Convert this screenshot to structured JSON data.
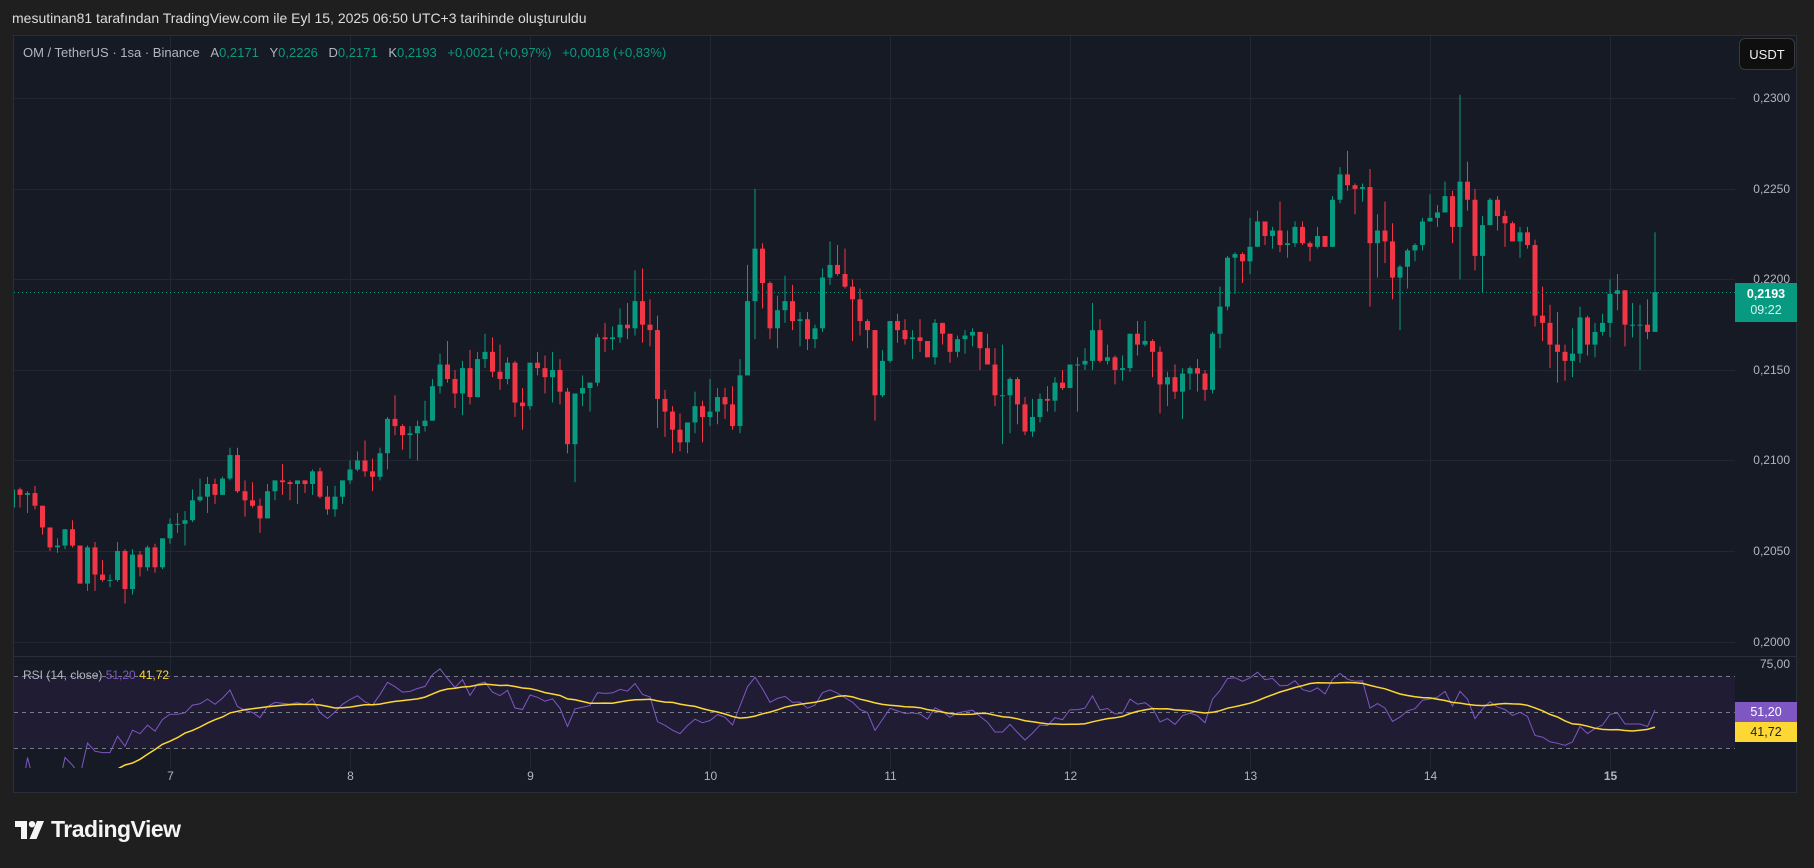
{
  "title": "mesutinan81 tarafından TradingView.com ile Eyl 15, 2025 06:50 UTC+3 tarihinde oluşturuldu",
  "legend": {
    "symbol": "OM / TetherUS · 1sa · Binance",
    "open_label": "A",
    "open": "0,2171",
    "high_label": "Y",
    "high": "0,2226",
    "low_label": "D",
    "low": "0,2171",
    "close_label": "K",
    "close": "0,2193",
    "change": "+0,0021 (+0,97%)",
    "change2": "+0,0018 (+0,83%)"
  },
  "currency_button": "USDT",
  "price_tag": {
    "price": "0,2193",
    "countdown": "09:22"
  },
  "rsi": {
    "label": "RSI (14, close)",
    "value": "51,20",
    "ma_value": "41,72",
    "axis_label": "75,00",
    "upper": 70,
    "middle": 50,
    "lower": 30
  },
  "logo": {
    "text": "TradingView"
  },
  "colors": {
    "up": "#089981",
    "down": "#f23645",
    "rsi": "#7e57c2",
    "rsi_ma": "#fdd835",
    "background": "#161a25"
  },
  "chart_data": {
    "type": "candlestick",
    "interval": "1sa",
    "ylim": [
      0.1992,
      0.2335
    ],
    "grid": true,
    "price_ticks": [
      {
        "label": "0,2300",
        "value": 0.23
      },
      {
        "label": "0,2250",
        "value": 0.225
      },
      {
        "label": "0,2200",
        "value": 0.22
      },
      {
        "label": "0,2150",
        "value": 0.215
      },
      {
        "label": "0,2100",
        "value": 0.21
      },
      {
        "label": "0,2050",
        "value": 0.205
      },
      {
        "label": "0,2000",
        "value": 0.2
      }
    ],
    "day_ticks": [
      "7",
      "8",
      "9",
      "10",
      "11",
      "12",
      "13",
      "14",
      "15"
    ],
    "last_price": 0.2193,
    "ohlc": [
      [
        0.2074,
        0.2089,
        0.2069,
        0.2084
      ],
      [
        0.2084,
        0.2085,
        0.2074,
        0.2081
      ],
      [
        0.2081,
        0.2083,
        0.2071,
        0.2082
      ],
      [
        0.2082,
        0.2086,
        0.2073,
        0.2075
      ],
      [
        0.2075,
        0.2075,
        0.2059,
        0.2063
      ],
      [
        0.2063,
        0.2063,
        0.205,
        0.2052
      ],
      [
        0.2052,
        0.2057,
        0.2049,
        0.2053
      ],
      [
        0.2053,
        0.2062,
        0.2051,
        0.2062
      ],
      [
        0.2062,
        0.2067,
        0.2052,
        0.2053
      ],
      [
        0.2053,
        0.2053,
        0.2032,
        0.2032
      ],
      [
        0.2032,
        0.2053,
        0.2028,
        0.2052
      ],
      [
        0.2052,
        0.2055,
        0.2028,
        0.2037
      ],
      [
        0.2037,
        0.2045,
        0.2033,
        0.2034
      ],
      [
        0.2034,
        0.2037,
        0.203,
        0.2034
      ],
      [
        0.2034,
        0.2055,
        0.2033,
        0.205
      ],
      [
        0.205,
        0.2051,
        0.2021,
        0.2029
      ],
      [
        0.2029,
        0.2051,
        0.2026,
        0.2048
      ],
      [
        0.2048,
        0.205,
        0.2036,
        0.2041
      ],
      [
        0.2041,
        0.2053,
        0.2039,
        0.2052
      ],
      [
        0.2052,
        0.2054,
        0.2038,
        0.2041
      ],
      [
        0.2041,
        0.2057,
        0.204,
        0.2057
      ],
      [
        0.2057,
        0.2068,
        0.2054,
        0.2065
      ],
      [
        0.2065,
        0.2071,
        0.206,
        0.2065
      ],
      [
        0.2065,
        0.2072,
        0.2053,
        0.2067
      ],
      [
        0.2067,
        0.2084,
        0.2066,
        0.2078
      ],
      [
        0.2078,
        0.209,
        0.2077,
        0.208
      ],
      [
        0.208,
        0.2091,
        0.2071,
        0.2087
      ],
      [
        0.2087,
        0.209,
        0.2076,
        0.2081
      ],
      [
        0.2081,
        0.2091,
        0.2081,
        0.209
      ],
      [
        0.209,
        0.2107,
        0.2089,
        0.2103
      ],
      [
        0.2103,
        0.2107,
        0.2082,
        0.2083
      ],
      [
        0.2083,
        0.2089,
        0.2069,
        0.2078
      ],
      [
        0.2078,
        0.2088,
        0.2074,
        0.2075
      ],
      [
        0.2075,
        0.2079,
        0.206,
        0.2068
      ],
      [
        0.2068,
        0.2087,
        0.2068,
        0.2083
      ],
      [
        0.2083,
        0.2089,
        0.2078,
        0.2089
      ],
      [
        0.2089,
        0.2098,
        0.2081,
        0.2088
      ],
      [
        0.2088,
        0.2089,
        0.2078,
        0.2087
      ],
      [
        0.2087,
        0.2089,
        0.2076,
        0.2089
      ],
      [
        0.2089,
        0.2089,
        0.2082,
        0.2087
      ],
      [
        0.2087,
        0.2095,
        0.2081,
        0.2094
      ],
      [
        0.2094,
        0.2096,
        0.2079,
        0.208
      ],
      [
        0.208,
        0.2086,
        0.207,
        0.2073
      ],
      [
        0.2073,
        0.2086,
        0.2069,
        0.208
      ],
      [
        0.208,
        0.2089,
        0.2076,
        0.2089
      ],
      [
        0.2089,
        0.21,
        0.2087,
        0.2095
      ],
      [
        0.2095,
        0.2105,
        0.2094,
        0.21
      ],
      [
        0.21,
        0.2111,
        0.2091,
        0.2094
      ],
      [
        0.2094,
        0.2101,
        0.2083,
        0.2091
      ],
      [
        0.2091,
        0.2107,
        0.2089,
        0.2104
      ],
      [
        0.2104,
        0.2124,
        0.2095,
        0.2123
      ],
      [
        0.2123,
        0.2136,
        0.2114,
        0.2119
      ],
      [
        0.2119,
        0.212,
        0.2106,
        0.2114
      ],
      [
        0.2114,
        0.2119,
        0.2101,
        0.2115
      ],
      [
        0.2115,
        0.2122,
        0.21,
        0.2119
      ],
      [
        0.2119,
        0.2133,
        0.2116,
        0.2122
      ],
      [
        0.2122,
        0.2145,
        0.2122,
        0.2141
      ],
      [
        0.2141,
        0.2159,
        0.2137,
        0.2153
      ],
      [
        0.2153,
        0.2166,
        0.2143,
        0.2145
      ],
      [
        0.2145,
        0.215,
        0.2129,
        0.2137
      ],
      [
        0.2137,
        0.2155,
        0.2125,
        0.2151
      ],
      [
        0.2151,
        0.2161,
        0.2131,
        0.2135
      ],
      [
        0.2135,
        0.216,
        0.2135,
        0.2156
      ],
      [
        0.2156,
        0.217,
        0.2151,
        0.216
      ],
      [
        0.216,
        0.2168,
        0.2146,
        0.2149
      ],
      [
        0.2149,
        0.2164,
        0.2139,
        0.2145
      ],
      [
        0.2145,
        0.2157,
        0.2142,
        0.2154
      ],
      [
        0.2154,
        0.2155,
        0.2124,
        0.2132
      ],
      [
        0.2132,
        0.214,
        0.2117,
        0.213
      ],
      [
        0.213,
        0.2154,
        0.2128,
        0.2154
      ],
      [
        0.2154,
        0.216,
        0.2147,
        0.2151
      ],
      [
        0.2151,
        0.2158,
        0.2137,
        0.2146
      ],
      [
        0.2146,
        0.216,
        0.2132,
        0.215
      ],
      [
        0.215,
        0.2156,
        0.2131,
        0.2138
      ],
      [
        0.2138,
        0.214,
        0.2104,
        0.2109
      ],
      [
        0.2109,
        0.2137,
        0.2088,
        0.2137
      ],
      [
        0.2137,
        0.2147,
        0.213,
        0.214
      ],
      [
        0.214,
        0.2143,
        0.2127,
        0.2143
      ],
      [
        0.2143,
        0.217,
        0.2141,
        0.2168
      ],
      [
        0.2168,
        0.2176,
        0.216,
        0.2167
      ],
      [
        0.2167,
        0.2174,
        0.2161,
        0.2168
      ],
      [
        0.2168,
        0.2184,
        0.2165,
        0.2175
      ],
      [
        0.2175,
        0.2187,
        0.2167,
        0.2173
      ],
      [
        0.2173,
        0.2205,
        0.2169,
        0.2188
      ],
      [
        0.2188,
        0.2206,
        0.2165,
        0.2175
      ],
      [
        0.2175,
        0.2189,
        0.2163,
        0.2172
      ],
      [
        0.2172,
        0.218,
        0.2118,
        0.2134
      ],
      [
        0.2134,
        0.2139,
        0.2113,
        0.2127
      ],
      [
        0.2127,
        0.213,
        0.2104,
        0.2117
      ],
      [
        0.2117,
        0.2126,
        0.2105,
        0.211
      ],
      [
        0.211,
        0.2121,
        0.2104,
        0.2121
      ],
      [
        0.2121,
        0.2138,
        0.2115,
        0.213
      ],
      [
        0.213,
        0.2133,
        0.211,
        0.2124
      ],
      [
        0.2124,
        0.2145,
        0.2119,
        0.2127
      ],
      [
        0.2127,
        0.214,
        0.212,
        0.2135
      ],
      [
        0.2135,
        0.214,
        0.2123,
        0.2131
      ],
      [
        0.2131,
        0.2141,
        0.2117,
        0.2119
      ],
      [
        0.2119,
        0.2156,
        0.2115,
        0.2147
      ],
      [
        0.2147,
        0.2208,
        0.2147,
        0.2188
      ],
      [
        0.2188,
        0.225,
        0.2167,
        0.2217
      ],
      [
        0.2217,
        0.222,
        0.2184,
        0.2198
      ],
      [
        0.2198,
        0.2199,
        0.2167,
        0.2173
      ],
      [
        0.2173,
        0.2191,
        0.2162,
        0.2183
      ],
      [
        0.2183,
        0.2202,
        0.2176,
        0.2188
      ],
      [
        0.2188,
        0.2197,
        0.2172,
        0.2177
      ],
      [
        0.2177,
        0.2182,
        0.2163,
        0.2178
      ],
      [
        0.2178,
        0.2182,
        0.2161,
        0.2167
      ],
      [
        0.2167,
        0.2175,
        0.2162,
        0.2173
      ],
      [
        0.2173,
        0.2206,
        0.2171,
        0.2201
      ],
      [
        0.2201,
        0.2221,
        0.2197,
        0.2208
      ],
      [
        0.2208,
        0.2219,
        0.2202,
        0.2203
      ],
      [
        0.2203,
        0.2217,
        0.2195,
        0.2196
      ],
      [
        0.2196,
        0.22,
        0.2166,
        0.2189
      ],
      [
        0.2189,
        0.2195,
        0.2169,
        0.2177
      ],
      [
        0.2177,
        0.2178,
        0.2162,
        0.2172
      ],
      [
        0.2172,
        0.2172,
        0.2122,
        0.2136
      ],
      [
        0.2136,
        0.2161,
        0.2135,
        0.2155
      ],
      [
        0.2155,
        0.2177,
        0.2154,
        0.2177
      ],
      [
        0.2177,
        0.2181,
        0.2165,
        0.2172
      ],
      [
        0.2172,
        0.2178,
        0.2164,
        0.2167
      ],
      [
        0.2167,
        0.2172,
        0.2156,
        0.2168
      ],
      [
        0.2168,
        0.2178,
        0.216,
        0.2166
      ],
      [
        0.2166,
        0.2166,
        0.2157,
        0.2157
      ],
      [
        0.2157,
        0.2178,
        0.2153,
        0.2176
      ],
      [
        0.2176,
        0.2176,
        0.2164,
        0.217
      ],
      [
        0.217,
        0.217,
        0.2154,
        0.216
      ],
      [
        0.216,
        0.2169,
        0.2157,
        0.2167
      ],
      [
        0.2167,
        0.2172,
        0.2159,
        0.2169
      ],
      [
        0.2169,
        0.2173,
        0.2163,
        0.2171
      ],
      [
        0.2171,
        0.2171,
        0.215,
        0.2162
      ],
      [
        0.2162,
        0.217,
        0.2153,
        0.2153
      ],
      [
        0.2153,
        0.2162,
        0.213,
        0.2136
      ],
      [
        0.2136,
        0.2164,
        0.2109,
        0.2136
      ],
      [
        0.2136,
        0.2146,
        0.2115,
        0.2145
      ],
      [
        0.2145,
        0.2146,
        0.212,
        0.2131
      ],
      [
        0.2131,
        0.2135,
        0.2114,
        0.2116
      ],
      [
        0.2116,
        0.2134,
        0.2113,
        0.2124
      ],
      [
        0.2124,
        0.2137,
        0.2121,
        0.2134
      ],
      [
        0.2134,
        0.2141,
        0.2127,
        0.2133
      ],
      [
        0.2133,
        0.2146,
        0.2127,
        0.2143
      ],
      [
        0.2143,
        0.215,
        0.2139,
        0.214
      ],
      [
        0.214,
        0.2153,
        0.214,
        0.2153
      ],
      [
        0.2153,
        0.2157,
        0.2127,
        0.2153
      ],
      [
        0.2153,
        0.2162,
        0.215,
        0.2155
      ],
      [
        0.2155,
        0.2187,
        0.215,
        0.2172
      ],
      [
        0.2172,
        0.2178,
        0.2154,
        0.2155
      ],
      [
        0.2155,
        0.2164,
        0.2153,
        0.2157
      ],
      [
        0.2157,
        0.2158,
        0.2142,
        0.215
      ],
      [
        0.215,
        0.2158,
        0.2144,
        0.2151
      ],
      [
        0.2151,
        0.217,
        0.2149,
        0.217
      ],
      [
        0.217,
        0.2177,
        0.2158,
        0.2164
      ],
      [
        0.2164,
        0.2177,
        0.2163,
        0.2166
      ],
      [
        0.2166,
        0.2167,
        0.2146,
        0.216
      ],
      [
        0.216,
        0.2163,
        0.2126,
        0.2142
      ],
      [
        0.2142,
        0.2149,
        0.213,
        0.2146
      ],
      [
        0.2146,
        0.2153,
        0.2134,
        0.2138
      ],
      [
        0.2138,
        0.2151,
        0.2123,
        0.2148
      ],
      [
        0.2148,
        0.2152,
        0.2139,
        0.2151
      ],
      [
        0.2151,
        0.2156,
        0.2138,
        0.2148
      ],
      [
        0.2148,
        0.215,
        0.2133,
        0.2139
      ],
      [
        0.2139,
        0.2171,
        0.2137,
        0.217
      ],
      [
        0.217,
        0.2196,
        0.2162,
        0.2185
      ],
      [
        0.2185,
        0.2213,
        0.2183,
        0.2212
      ],
      [
        0.2212,
        0.2215,
        0.2192,
        0.2214
      ],
      [
        0.2214,
        0.2215,
        0.2198,
        0.221
      ],
      [
        0.221,
        0.2234,
        0.2203,
        0.2218
      ],
      [
        0.2218,
        0.2238,
        0.2218,
        0.2232
      ],
      [
        0.2232,
        0.2232,
        0.2219,
        0.2224
      ],
      [
        0.2224,
        0.2229,
        0.2217,
        0.2227
      ],
      [
        0.2227,
        0.2243,
        0.2215,
        0.2219
      ],
      [
        0.2219,
        0.2227,
        0.2212,
        0.222
      ],
      [
        0.222,
        0.2232,
        0.2218,
        0.2229
      ],
      [
        0.2229,
        0.2232,
        0.2219,
        0.222
      ],
      [
        0.222,
        0.2221,
        0.221,
        0.2218
      ],
      [
        0.2218,
        0.2229,
        0.2217,
        0.2224
      ],
      [
        0.2224,
        0.2224,
        0.2218,
        0.2218
      ],
      [
        0.2218,
        0.2246,
        0.2218,
        0.2244
      ],
      [
        0.2244,
        0.2262,
        0.2242,
        0.2258
      ],
      [
        0.2258,
        0.2271,
        0.2249,
        0.2252
      ],
      [
        0.2252,
        0.2253,
        0.2236,
        0.225
      ],
      [
        0.225,
        0.2253,
        0.2243,
        0.2251
      ],
      [
        0.2251,
        0.2261,
        0.2185,
        0.222
      ],
      [
        0.222,
        0.2236,
        0.2201,
        0.2227
      ],
      [
        0.2227,
        0.2243,
        0.2209,
        0.2221
      ],
      [
        0.2221,
        0.2231,
        0.2189,
        0.2201
      ],
      [
        0.2201,
        0.2208,
        0.2172,
        0.2207
      ],
      [
        0.2207,
        0.2217,
        0.2195,
        0.2216
      ],
      [
        0.2216,
        0.222,
        0.221,
        0.2219
      ],
      [
        0.2219,
        0.2234,
        0.2216,
        0.2232
      ],
      [
        0.2232,
        0.2247,
        0.2232,
        0.2234
      ],
      [
        0.2234,
        0.2241,
        0.2229,
        0.2237
      ],
      [
        0.2237,
        0.2254,
        0.2237,
        0.2246
      ],
      [
        0.2246,
        0.2249,
        0.222,
        0.2229
      ],
      [
        0.2229,
        0.2302,
        0.22,
        0.2254
      ],
      [
        0.2254,
        0.2265,
        0.2238,
        0.2244
      ],
      [
        0.2244,
        0.225,
        0.2205,
        0.2213
      ],
      [
        0.2213,
        0.2235,
        0.2193,
        0.223
      ],
      [
        0.223,
        0.2245,
        0.223,
        0.2244
      ],
      [
        0.2244,
        0.2246,
        0.2227,
        0.2235
      ],
      [
        0.2235,
        0.2238,
        0.2218,
        0.2231
      ],
      [
        0.2231,
        0.2232,
        0.2221,
        0.2221
      ],
      [
        0.2221,
        0.2229,
        0.2212,
        0.2226
      ],
      [
        0.2226,
        0.2229,
        0.2217,
        0.2219
      ],
      [
        0.2219,
        0.2222,
        0.2174,
        0.218
      ],
      [
        0.218,
        0.2196,
        0.2166,
        0.2176
      ],
      [
        0.2176,
        0.2186,
        0.2151,
        0.2164
      ],
      [
        0.2164,
        0.2182,
        0.2143,
        0.216
      ],
      [
        0.216,
        0.2164,
        0.2144,
        0.2155
      ],
      [
        0.2155,
        0.2173,
        0.2146,
        0.2159
      ],
      [
        0.2159,
        0.2185,
        0.2154,
        0.2179
      ],
      [
        0.2179,
        0.218,
        0.2158,
        0.2164
      ],
      [
        0.2164,
        0.2176,
        0.2157,
        0.2171
      ],
      [
        0.2171,
        0.2181,
        0.2169,
        0.2176
      ],
      [
        0.2176,
        0.22,
        0.2168,
        0.2192
      ],
      [
        0.2192,
        0.2203,
        0.2183,
        0.2194
      ],
      [
        0.2194,
        0.2194,
        0.2163,
        0.2175
      ],
      [
        0.2175,
        0.2187,
        0.2168,
        0.2175
      ],
      [
        0.2175,
        0.2186,
        0.215,
        0.2175
      ],
      [
        0.2175,
        0.2189,
        0.2167,
        0.2171
      ],
      [
        0.2171,
        0.2226,
        0.2171,
        0.2193
      ]
    ]
  }
}
